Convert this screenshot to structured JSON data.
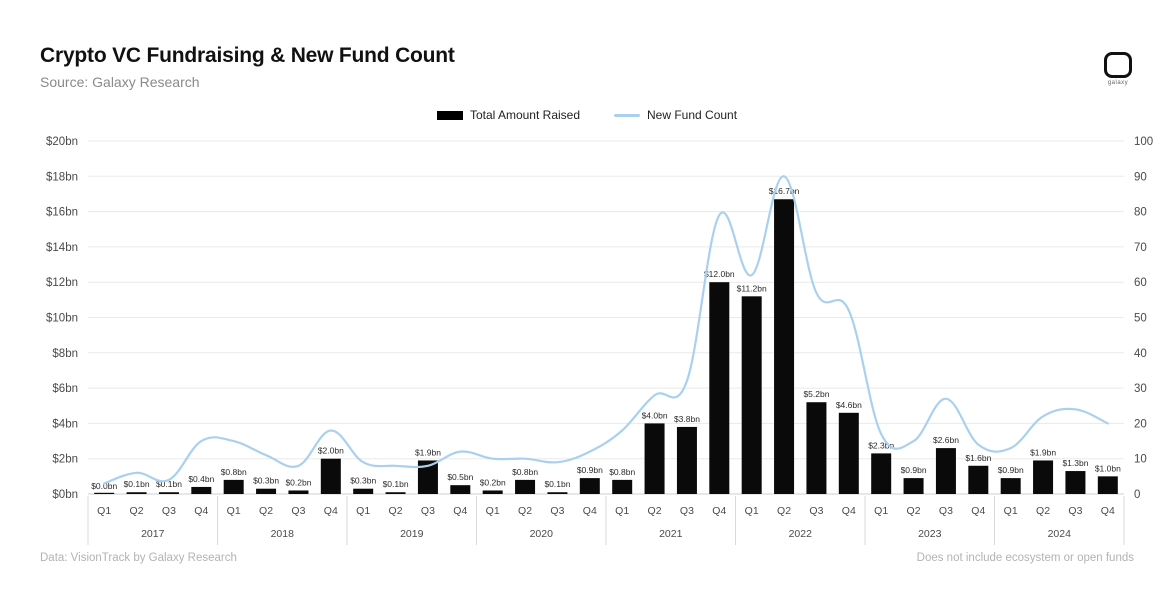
{
  "header": {
    "title": "Crypto VC Fundraising & New Fund Count",
    "subtitle": "Source: Galaxy Research",
    "logo_text": "galaxy"
  },
  "legend": [
    {
      "label": "Total Amount Raised",
      "type": "bar",
      "color": "#000000"
    },
    {
      "label": "New Fund Count",
      "type": "line",
      "color": "#a9d1ef"
    }
  ],
  "footer": {
    "left": "Data: VisionTrack by Galaxy Research",
    "right": "Does not include ecosystem or open funds"
  },
  "chart_data": {
    "type": "bar",
    "combo": "bar+line",
    "title": "Crypto VC Fundraising & New Fund Count",
    "grid": true,
    "legend_position": "top-center",
    "quarters": [
      "Q1",
      "Q2",
      "Q3",
      "Q4"
    ],
    "x_years": [
      "2017",
      "2018",
      "2019",
      "2020",
      "2021",
      "2022",
      "2023",
      "2024"
    ],
    "left_axis": {
      "min": 0,
      "max": 20,
      "tick_values": [
        0,
        2,
        4,
        6,
        8,
        10,
        12,
        14,
        16,
        18,
        20
      ],
      "tick_labels": [
        "$0bn",
        "$2bn",
        "$4bn",
        "$6bn",
        "$8bn",
        "$10bn",
        "$12bn",
        "$14bn",
        "$16bn",
        "$18bn",
        "$20bn"
      ]
    },
    "right_axis": {
      "min": 0,
      "max": 100,
      "tick_values": [
        0,
        10,
        20,
        30,
        40,
        50,
        60,
        70,
        80,
        90,
        100
      ],
      "tick_labels": [
        "0",
        "10",
        "20",
        "30",
        "40",
        "50",
        "60",
        "70",
        "80",
        "90",
        "100"
      ]
    },
    "series": [
      {
        "name": "Total Amount Raised",
        "type": "bar",
        "axis": "left",
        "color": "#0a0a0a",
        "values": [
          0.0,
          0.1,
          0.1,
          0.4,
          0.8,
          0.3,
          0.2,
          2.0,
          0.3,
          0.1,
          1.9,
          0.5,
          0.2,
          0.8,
          0.1,
          0.9,
          0.8,
          4.0,
          3.8,
          12.0,
          11.2,
          16.7,
          5.2,
          4.6,
          2.3,
          0.9,
          2.6,
          1.6,
          0.9,
          1.9,
          1.3,
          1.0
        ],
        "labels": [
          "$0.0bn",
          "$0.1bn",
          "$0.1bn",
          "$0.4bn",
          "$0.8bn",
          "$0.3bn",
          "$0.2bn",
          "$2.0bn",
          "$0.3bn",
          "$0.1bn",
          "$1.9bn",
          "$0.5bn",
          "$0.2bn",
          "$0.8bn",
          "$0.1bn",
          "$0.9bn",
          "$0.8bn",
          "$4.0bn",
          "$3.8bn",
          "$12.0bn",
          "$11.2bn",
          "$16.7bn",
          "$5.2bn",
          "$4.6bn",
          "$2.3bn",
          "$0.9bn",
          "$2.6bn",
          "$1.6bn",
          "$0.9bn",
          "$1.9bn",
          "$1.3bn",
          "$1.0bn"
        ]
      },
      {
        "name": "New Fund Count",
        "type": "line",
        "axis": "right",
        "color": "#a9d1ef",
        "values": [
          3,
          6,
          4,
          15,
          15,
          11,
          8,
          18,
          9,
          8,
          8,
          12,
          10,
          10,
          9,
          12,
          18,
          28,
          32,
          79,
          62,
          90,
          57,
          52,
          17,
          15,
          27,
          14,
          13,
          22,
          24,
          20
        ]
      }
    ]
  }
}
